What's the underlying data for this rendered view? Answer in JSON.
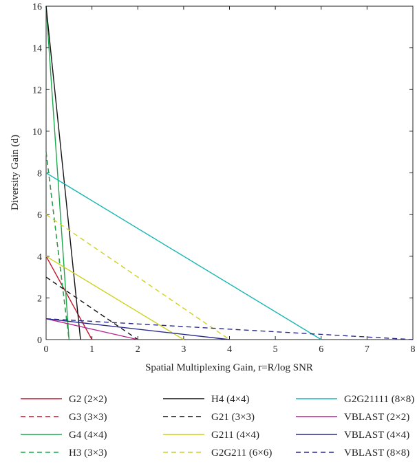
{
  "chart_data": {
    "type": "line",
    "title": "",
    "xlabel": "Spatial Multiplexing Gain, r=R/log SNR",
    "ylabel": "Diversity Gain (d)",
    "xlim": [
      0,
      8
    ],
    "ylim": [
      0,
      16
    ],
    "xticks": [
      0,
      1,
      2,
      3,
      4,
      5,
      6,
      7,
      8
    ],
    "yticks": [
      0,
      2,
      4,
      6,
      8,
      10,
      12,
      14,
      16
    ],
    "grid": false,
    "legend_position": "bottom",
    "series": [
      {
        "name": "G2 (2×2)",
        "color": "#c0142c",
        "dash": "solid",
        "x": [
          0,
          1
        ],
        "y": [
          4,
          0
        ]
      },
      {
        "name": "G3 (3×3)",
        "color": "#c0142c",
        "dash": "dashed",
        "x": [
          0,
          0.5
        ],
        "y": [
          9,
          0
        ]
      },
      {
        "name": "G4 (4×4)",
        "color": "#1aa84a",
        "dash": "solid",
        "x": [
          0,
          0.5
        ],
        "y": [
          16,
          0
        ]
      },
      {
        "name": "H3 (3×3)",
        "color": "#1aa84a",
        "dash": "dashed",
        "x": [
          0,
          0.5
        ],
        "y": [
          9,
          0
        ]
      },
      {
        "name": "H4 (4×4)",
        "color": "#111111",
        "dash": "solid",
        "x": [
          0,
          0.75
        ],
        "y": [
          16,
          0
        ]
      },
      {
        "name": "G21 (3×3)",
        "color": "#111111",
        "dash": "dashed",
        "x": [
          0,
          2
        ],
        "y": [
          3,
          0
        ]
      },
      {
        "name": "G211 (4×4)",
        "color": "#cfd11e",
        "dash": "solid",
        "x": [
          0,
          3
        ],
        "y": [
          4,
          0
        ]
      },
      {
        "name": "G2G211 (6×6)",
        "color": "#cfd11e",
        "dash": "dashed",
        "x": [
          0,
          4
        ],
        "y": [
          6,
          0
        ]
      },
      {
        "name": "G2G21111 (8×8)",
        "color": "#18b5b5",
        "dash": "solid",
        "x": [
          0,
          6
        ],
        "y": [
          8,
          0
        ]
      },
      {
        "name": "VBLAST (2×2)",
        "color": "#b5248f",
        "dash": "solid",
        "x": [
          0,
          2
        ],
        "y": [
          1,
          0
        ]
      },
      {
        "name": "VBLAST (4×4)",
        "color": "#2a2a8c",
        "dash": "solid",
        "x": [
          0,
          4
        ],
        "y": [
          1,
          0
        ]
      },
      {
        "name": "VBLAST (8×8)",
        "color": "#2a2a8c",
        "dash": "dashed",
        "x": [
          0,
          8
        ],
        "y": [
          1,
          0
        ]
      }
    ]
  }
}
